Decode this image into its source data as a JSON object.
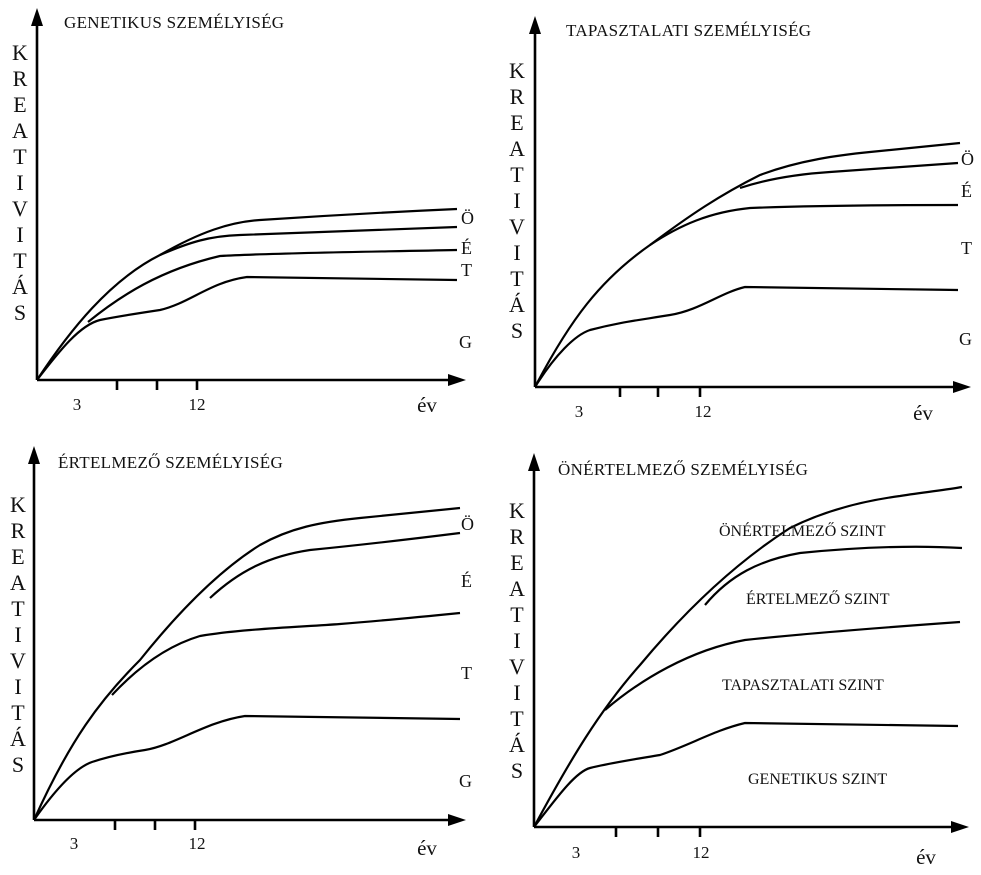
{
  "chart_data": [
    {
      "type": "line",
      "title": "GENETIKUS SZEMÉLYISÉG",
      "ylabel": "KREATIVITÁS",
      "xlabel": "év",
      "x_ticks": [
        "3",
        "12"
      ],
      "series": [
        {
          "name": "Ö"
        },
        {
          "name": "É"
        },
        {
          "name": "T"
        },
        {
          "name": "G"
        }
      ]
    },
    {
      "type": "line",
      "title": "TAPASZTALATI SZEMÉLYISÉG",
      "ylabel": "KREATIVITÁS",
      "xlabel": "év",
      "x_ticks": [
        "3",
        "12"
      ],
      "series": [
        {
          "name": "Ö"
        },
        {
          "name": "É"
        },
        {
          "name": "T"
        },
        {
          "name": "G"
        }
      ]
    },
    {
      "type": "line",
      "title": "ÉRTELMEZŐ SZEMÉLYISÉG",
      "ylabel": "KREATIVITÁS",
      "xlabel": "év",
      "x_ticks": [
        "3",
        "12"
      ],
      "series": [
        {
          "name": "Ö"
        },
        {
          "name": "É"
        },
        {
          "name": "T"
        },
        {
          "name": "G"
        }
      ]
    },
    {
      "type": "line",
      "title": "ÖNÉRTELMEZŐ SZEMÉLYISÉG",
      "ylabel": "KREATIVITÁS",
      "xlabel": "év",
      "x_ticks": [
        "3",
        "12"
      ],
      "series": [
        {
          "name": "ÖNÉRTELMEZŐ SZINT"
        },
        {
          "name": "ÉRTELMEZŐ SZINT"
        },
        {
          "name": "TAPASZTALATI SZINT"
        },
        {
          "name": "GENETIKUS SZINT"
        }
      ]
    }
  ]
}
